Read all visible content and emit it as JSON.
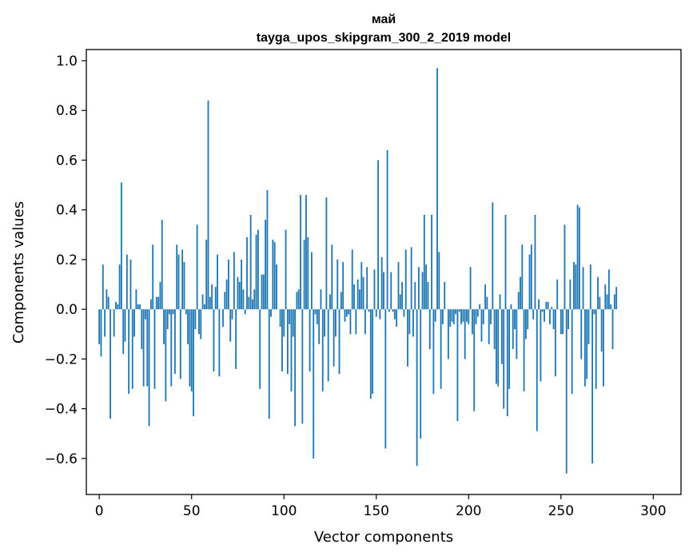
{
  "chart_data": {
    "type": "bar",
    "title_line1": "май",
    "title_line2": "tayga_upos_skipgram_300_2_2019 model",
    "xlabel": "Vector components",
    "ylabel": "Components values",
    "xlim": [
      -7,
      315
    ],
    "ylim": [
      -0.745,
      1.045
    ],
    "xticks": [
      0,
      50,
      100,
      150,
      200,
      250,
      300
    ],
    "xtick_labels": [
      "0",
      "50",
      "100",
      "150",
      "200",
      "250",
      "300"
    ],
    "yticks": [
      -0.6,
      -0.4,
      -0.2,
      0.0,
      0.2,
      0.4,
      0.6,
      0.8,
      1.0
    ],
    "ytick_labels": [
      "−0.6",
      "−0.4",
      "−0.2",
      "0.0",
      "0.2",
      "0.4",
      "0.6",
      "0.8",
      "1.0"
    ],
    "bar_color": "#1f77b4",
    "grid": false,
    "values": [
      -0.14,
      -0.19,
      0.18,
      -0.11,
      0.08,
      0.05,
      -0.44,
      0.0,
      -0.11,
      0.03,
      0.02,
      0.18,
      0.51,
      -0.18,
      -0.13,
      0.22,
      -0.34,
      0.2,
      -0.32,
      -0.11,
      0.08,
      0.02,
      0.02,
      -0.16,
      -0.31,
      -0.04,
      -0.31,
      -0.47,
      0.04,
      0.26,
      -0.32,
      0.05,
      0.05,
      0.11,
      0.36,
      -0.14,
      -0.37,
      -0.08,
      -0.02,
      -0.31,
      -0.02,
      -0.26,
      0.26,
      0.22,
      -0.28,
      0.24,
      0.19,
      -0.02,
      -0.14,
      -0.31,
      -0.33,
      -0.43,
      -0.08,
      0.34,
      -0.1,
      -0.12,
      0.06,
      0.02,
      0.28,
      0.84,
      0.05,
      0.1,
      -0.25,
      0.09,
      0.22,
      -0.27,
      0.0,
      -0.07,
      0.07,
      0.12,
      0.2,
      -0.13,
      -0.04,
      0.23,
      -0.24,
      0.13,
      0.11,
      0.2,
      0.08,
      -0.02,
      0.29,
      0.05,
      0.38,
      0.04,
      0.08,
      0.3,
      0.32,
      -0.32,
      0.14,
      0.14,
      0.36,
      0.48,
      -0.44,
      -0.03,
      0.28,
      0.27,
      0.18,
      0.0,
      -0.07,
      -0.25,
      -0.11,
      0.32,
      -0.26,
      -0.06,
      -0.33,
      -0.11,
      -0.47,
      0.07,
      0.08,
      0.46,
      -0.46,
      0.28,
      0.46,
      0.29,
      -0.25,
      0.23,
      -0.6,
      -0.02,
      -0.06,
      -0.14,
      0.08,
      -0.33,
      -0.11,
      0.45,
      -0.29,
      0.06,
      0.26,
      -0.23,
      -0.11,
      0.2,
      -0.26,
      0.07,
      0.19,
      -0.05,
      -0.03,
      -0.02,
      -0.1,
      0.24,
      0.1,
      -0.1,
      0.12,
      0.08,
      0.19,
      0.13,
      -0.1,
      0.17,
      -0.01,
      -0.36,
      -0.34,
      0.16,
      -0.03,
      0.6,
      -0.04,
      0.21,
      0.15,
      -0.56,
      0.64,
      -0.01,
      0.15,
      -0.01,
      -0.04,
      -0.07,
      0.19,
      0.06,
      0.11,
      -0.03,
      0.24,
      -0.23,
      -0.1,
      0.25,
      -0.11,
      0.11,
      -0.63,
      0.17,
      -0.52,
      0.15,
      0.38,
      0.18,
      0.11,
      -0.16,
      0.38,
      -0.34,
      -0.05,
      0.97,
      0.23,
      -0.32,
      -0.06,
      0.11,
      0.0,
      -0.2,
      -0.07,
      -0.05,
      -0.06,
      -0.02,
      -0.45,
      -0.01,
      -0.06,
      -0.05,
      -0.2,
      -0.05,
      -0.06,
      0.17,
      -0.1,
      -0.41,
      -0.06,
      -0.03,
      0.02,
      -0.13,
      -0.06,
      0.1,
      0.05,
      -0.14,
      -0.06,
      0.43,
      -0.16,
      -0.3,
      -0.31,
      0.06,
      -0.22,
      -0.4,
      0.38,
      -0.43,
      -0.32,
      0.02,
      -0.16,
      -0.08,
      -0.2,
      0.07,
      0.13,
      0.26,
      -0.33,
      -0.12,
      -0.08,
      0.22,
      0.26,
      -0.04,
      0.38,
      -0.49,
      0.04,
      -0.29,
      -0.01,
      -0.05,
      0.03,
      0.03,
      -0.06,
      0.01,
      -0.08,
      -0.27,
      0.12,
      0.0,
      -0.1,
      -0.1,
      0.34,
      -0.66,
      -0.08,
      0.12,
      -0.34,
      0.19,
      0.18,
      0.42,
      0.41,
      -0.2,
      0.17,
      -0.31,
      -0.28,
      -0.14,
      0.18,
      -0.62,
      -0.02,
      -0.32,
      0.13,
      0.05,
      -0.17,
      -0.31,
      0.1,
      0.06,
      0.16,
      0.02,
      -0.16,
      0.06,
      0.09
    ]
  }
}
